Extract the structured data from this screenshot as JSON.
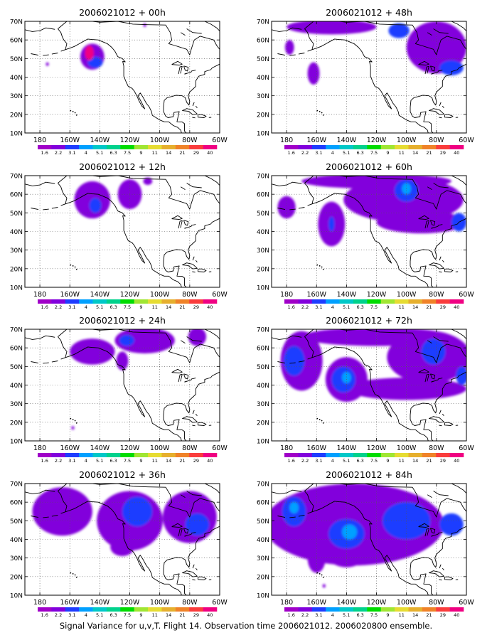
{
  "figure": {
    "caption": "Signal Variance for u,v,T. Flight 14. Observation time 2006021012. 2006020800 ensemble."
  },
  "axes": {
    "lat_labels": [
      "70N",
      "60N",
      "50N",
      "40N",
      "30N",
      "20N",
      "10N"
    ],
    "lon_labels": [
      "180",
      "160W",
      "140W",
      "120W",
      "100W",
      "80W",
      "60W"
    ]
  },
  "colorbar": {
    "labels": [
      "1.6",
      "2.2",
      "3.1",
      "4",
      "5.1",
      "6.3",
      "7.5",
      "9",
      "11",
      "14",
      "21",
      "29",
      "40"
    ],
    "colors": [
      "#a000c8",
      "#8200dc",
      "#1e3cff",
      "#00a0ff",
      "#00c8c8",
      "#00d28c",
      "#00dc00",
      "#a0e632",
      "#e6dc32",
      "#e6af2d",
      "#f08228",
      "#fa3c3c",
      "#f00082"
    ]
  },
  "panels": [
    {
      "title": "2006021012 + 00h",
      "blobs": [
        {
          "lon": -145,
          "lat": 51,
          "rx": 8,
          "ry": 7,
          "color": "#8200dc"
        },
        {
          "lon": -143,
          "lat": 48,
          "rx": 5,
          "ry": 3,
          "color": "#1e3cff"
        },
        {
          "lon": -147,
          "lat": 53,
          "rx": 3,
          "ry": 4,
          "color": "#f00082"
        },
        {
          "lon": -175,
          "lat": 47,
          "rx": 1,
          "ry": 1,
          "color": "#8200dc"
        },
        {
          "lon": -110,
          "lat": 68,
          "rx": 1,
          "ry": 1,
          "color": "#8200dc"
        }
      ]
    },
    {
      "title": "2006021012 + 48h",
      "blobs": [
        {
          "lon": -150,
          "lat": 67,
          "rx": 30,
          "ry": 4,
          "color": "#8200dc"
        },
        {
          "lon": -80,
          "lat": 56,
          "rx": 20,
          "ry": 14,
          "color": "#8200dc"
        },
        {
          "lon": -178,
          "lat": 56,
          "rx": 3,
          "ry": 4,
          "color": "#8200dc"
        },
        {
          "lon": -162,
          "lat": 42,
          "rx": 4,
          "ry": 6,
          "color": "#8200dc"
        },
        {
          "lon": -105,
          "lat": 65,
          "rx": 7,
          "ry": 4,
          "color": "#1e3cff"
        },
        {
          "lon": -70,
          "lat": 45,
          "rx": 8,
          "ry": 4,
          "color": "#1e3cff"
        }
      ]
    },
    {
      "title": "2006021012 + 12h",
      "blobs": [
        {
          "lon": -145,
          "lat": 57,
          "rx": 12,
          "ry": 10,
          "color": "#8200dc"
        },
        {
          "lon": -120,
          "lat": 60,
          "rx": 8,
          "ry": 8,
          "color": "#8200dc"
        },
        {
          "lon": -143,
          "lat": 54,
          "rx": 4,
          "ry": 4,
          "color": "#1e3cff"
        },
        {
          "lon": -108,
          "lat": 67,
          "rx": 3,
          "ry": 2,
          "color": "#8200dc"
        }
      ]
    },
    {
      "title": "2006021012 + 60h",
      "blobs": [
        {
          "lon": -150,
          "lat": 44,
          "rx": 9,
          "ry": 12,
          "color": "#8200dc"
        },
        {
          "lon": -102,
          "lat": 57,
          "rx": 40,
          "ry": 12,
          "color": "#8200dc"
        },
        {
          "lon": -120,
          "lat": 67,
          "rx": 50,
          "ry": 4,
          "color": "#8200dc"
        },
        {
          "lon": -90,
          "lat": 45,
          "rx": 30,
          "ry": 6,
          "color": "#8200dc"
        },
        {
          "lon": -180,
          "lat": 53,
          "rx": 6,
          "ry": 6,
          "color": "#8200dc"
        },
        {
          "lon": -100,
          "lat": 62,
          "rx": 8,
          "ry": 6,
          "color": "#1e3cff"
        },
        {
          "lon": -100,
          "lat": 63,
          "rx": 3,
          "ry": 3,
          "color": "#00a0ff"
        },
        {
          "lon": -65,
          "lat": 45,
          "rx": 5,
          "ry": 5,
          "color": "#1e3cff"
        },
        {
          "lon": -150,
          "lat": 44,
          "rx": 2,
          "ry": 4,
          "color": "#1e3cff"
        }
      ]
    },
    {
      "title": "2006021012 + 24h",
      "blobs": [
        {
          "lon": -145,
          "lat": 58,
          "rx": 15,
          "ry": 7,
          "color": "#8200dc"
        },
        {
          "lon": -110,
          "lat": 64,
          "rx": 20,
          "ry": 7,
          "color": "#8200dc"
        },
        {
          "lon": -125,
          "lat": 53,
          "rx": 4,
          "ry": 5,
          "color": "#8200dc"
        },
        {
          "lon": -75,
          "lat": 66,
          "rx": 6,
          "ry": 5,
          "color": "#8200dc"
        },
        {
          "lon": -122,
          "lat": 64,
          "rx": 5,
          "ry": 3,
          "color": "#1e3cff"
        },
        {
          "lon": -158,
          "lat": 17,
          "rx": 1,
          "ry": 1,
          "color": "#8200dc"
        }
      ]
    },
    {
      "title": "2006021012 + 72h",
      "blobs": [
        {
          "lon": -170,
          "lat": 53,
          "rx": 14,
          "ry": 16,
          "color": "#8200dc"
        },
        {
          "lon": -140,
          "lat": 43,
          "rx": 14,
          "ry": 12,
          "color": "#8200dc"
        },
        {
          "lon": -120,
          "lat": 66,
          "rx": 50,
          "ry": 5,
          "color": "#8200dc"
        },
        {
          "lon": -85,
          "lat": 55,
          "rx": 28,
          "ry": 14,
          "color": "#8200dc"
        },
        {
          "lon": -100,
          "lat": 38,
          "rx": 40,
          "ry": 6,
          "color": "#8200dc"
        },
        {
          "lon": -175,
          "lat": 53,
          "rx": 7,
          "ry": 8,
          "color": "#1e3cff"
        },
        {
          "lon": -142,
          "lat": 43,
          "rx": 8,
          "ry": 7,
          "color": "#1e3cff"
        },
        {
          "lon": -140,
          "lat": 44,
          "rx": 3,
          "ry": 3,
          "color": "#00a0ff"
        },
        {
          "lon": -82,
          "lat": 58,
          "rx": 8,
          "ry": 7,
          "color": "#1e3cff"
        },
        {
          "lon": -63,
          "lat": 45,
          "rx": 4,
          "ry": 5,
          "color": "#1e3cff"
        }
      ]
    },
    {
      "title": "2006021012 + 36h",
      "blobs": [
        {
          "lon": -165,
          "lat": 55,
          "rx": 20,
          "ry": 13,
          "color": "#8200dc"
        },
        {
          "lon": -120,
          "lat": 50,
          "rx": 22,
          "ry": 16,
          "color": "#8200dc"
        },
        {
          "lon": -80,
          "lat": 52,
          "rx": 18,
          "ry": 14,
          "color": "#8200dc"
        },
        {
          "lon": -115,
          "lat": 55,
          "rx": 10,
          "ry": 8,
          "color": "#1e3cff"
        },
        {
          "lon": -75,
          "lat": 48,
          "rx": 8,
          "ry": 6,
          "color": "#1e3cff"
        },
        {
          "lon": -125,
          "lat": 36,
          "rx": 8,
          "ry": 5,
          "color": "#8200dc"
        }
      ]
    },
    {
      "title": "2006021012 + 84h",
      "blobs": [
        {
          "lon": -135,
          "lat": 48,
          "rx": 60,
          "ry": 22,
          "color": "#8200dc"
        },
        {
          "lon": -140,
          "lat": 35,
          "rx": 15,
          "ry": 10,
          "color": "#8200dc"
        },
        {
          "lon": -160,
          "lat": 30,
          "rx": 6,
          "ry": 8,
          "color": "#8200dc"
        },
        {
          "lon": -175,
          "lat": 55,
          "rx": 8,
          "ry": 8,
          "color": "#1e3cff"
        },
        {
          "lon": -140,
          "lat": 43,
          "rx": 12,
          "ry": 8,
          "color": "#1e3cff"
        },
        {
          "lon": -138,
          "lat": 44,
          "rx": 5,
          "ry": 4,
          "color": "#00a0ff"
        },
        {
          "lon": -100,
          "lat": 50,
          "rx": 16,
          "ry": 10,
          "color": "#1e3cff"
        },
        {
          "lon": -70,
          "lat": 48,
          "rx": 8,
          "ry": 6,
          "color": "#1e3cff"
        },
        {
          "lon": -155,
          "lat": 15,
          "rx": 1,
          "ry": 1,
          "color": "#8200dc"
        },
        {
          "lon": -175,
          "lat": 57,
          "rx": 3,
          "ry": 3,
          "color": "#00a0ff"
        }
      ]
    }
  ]
}
